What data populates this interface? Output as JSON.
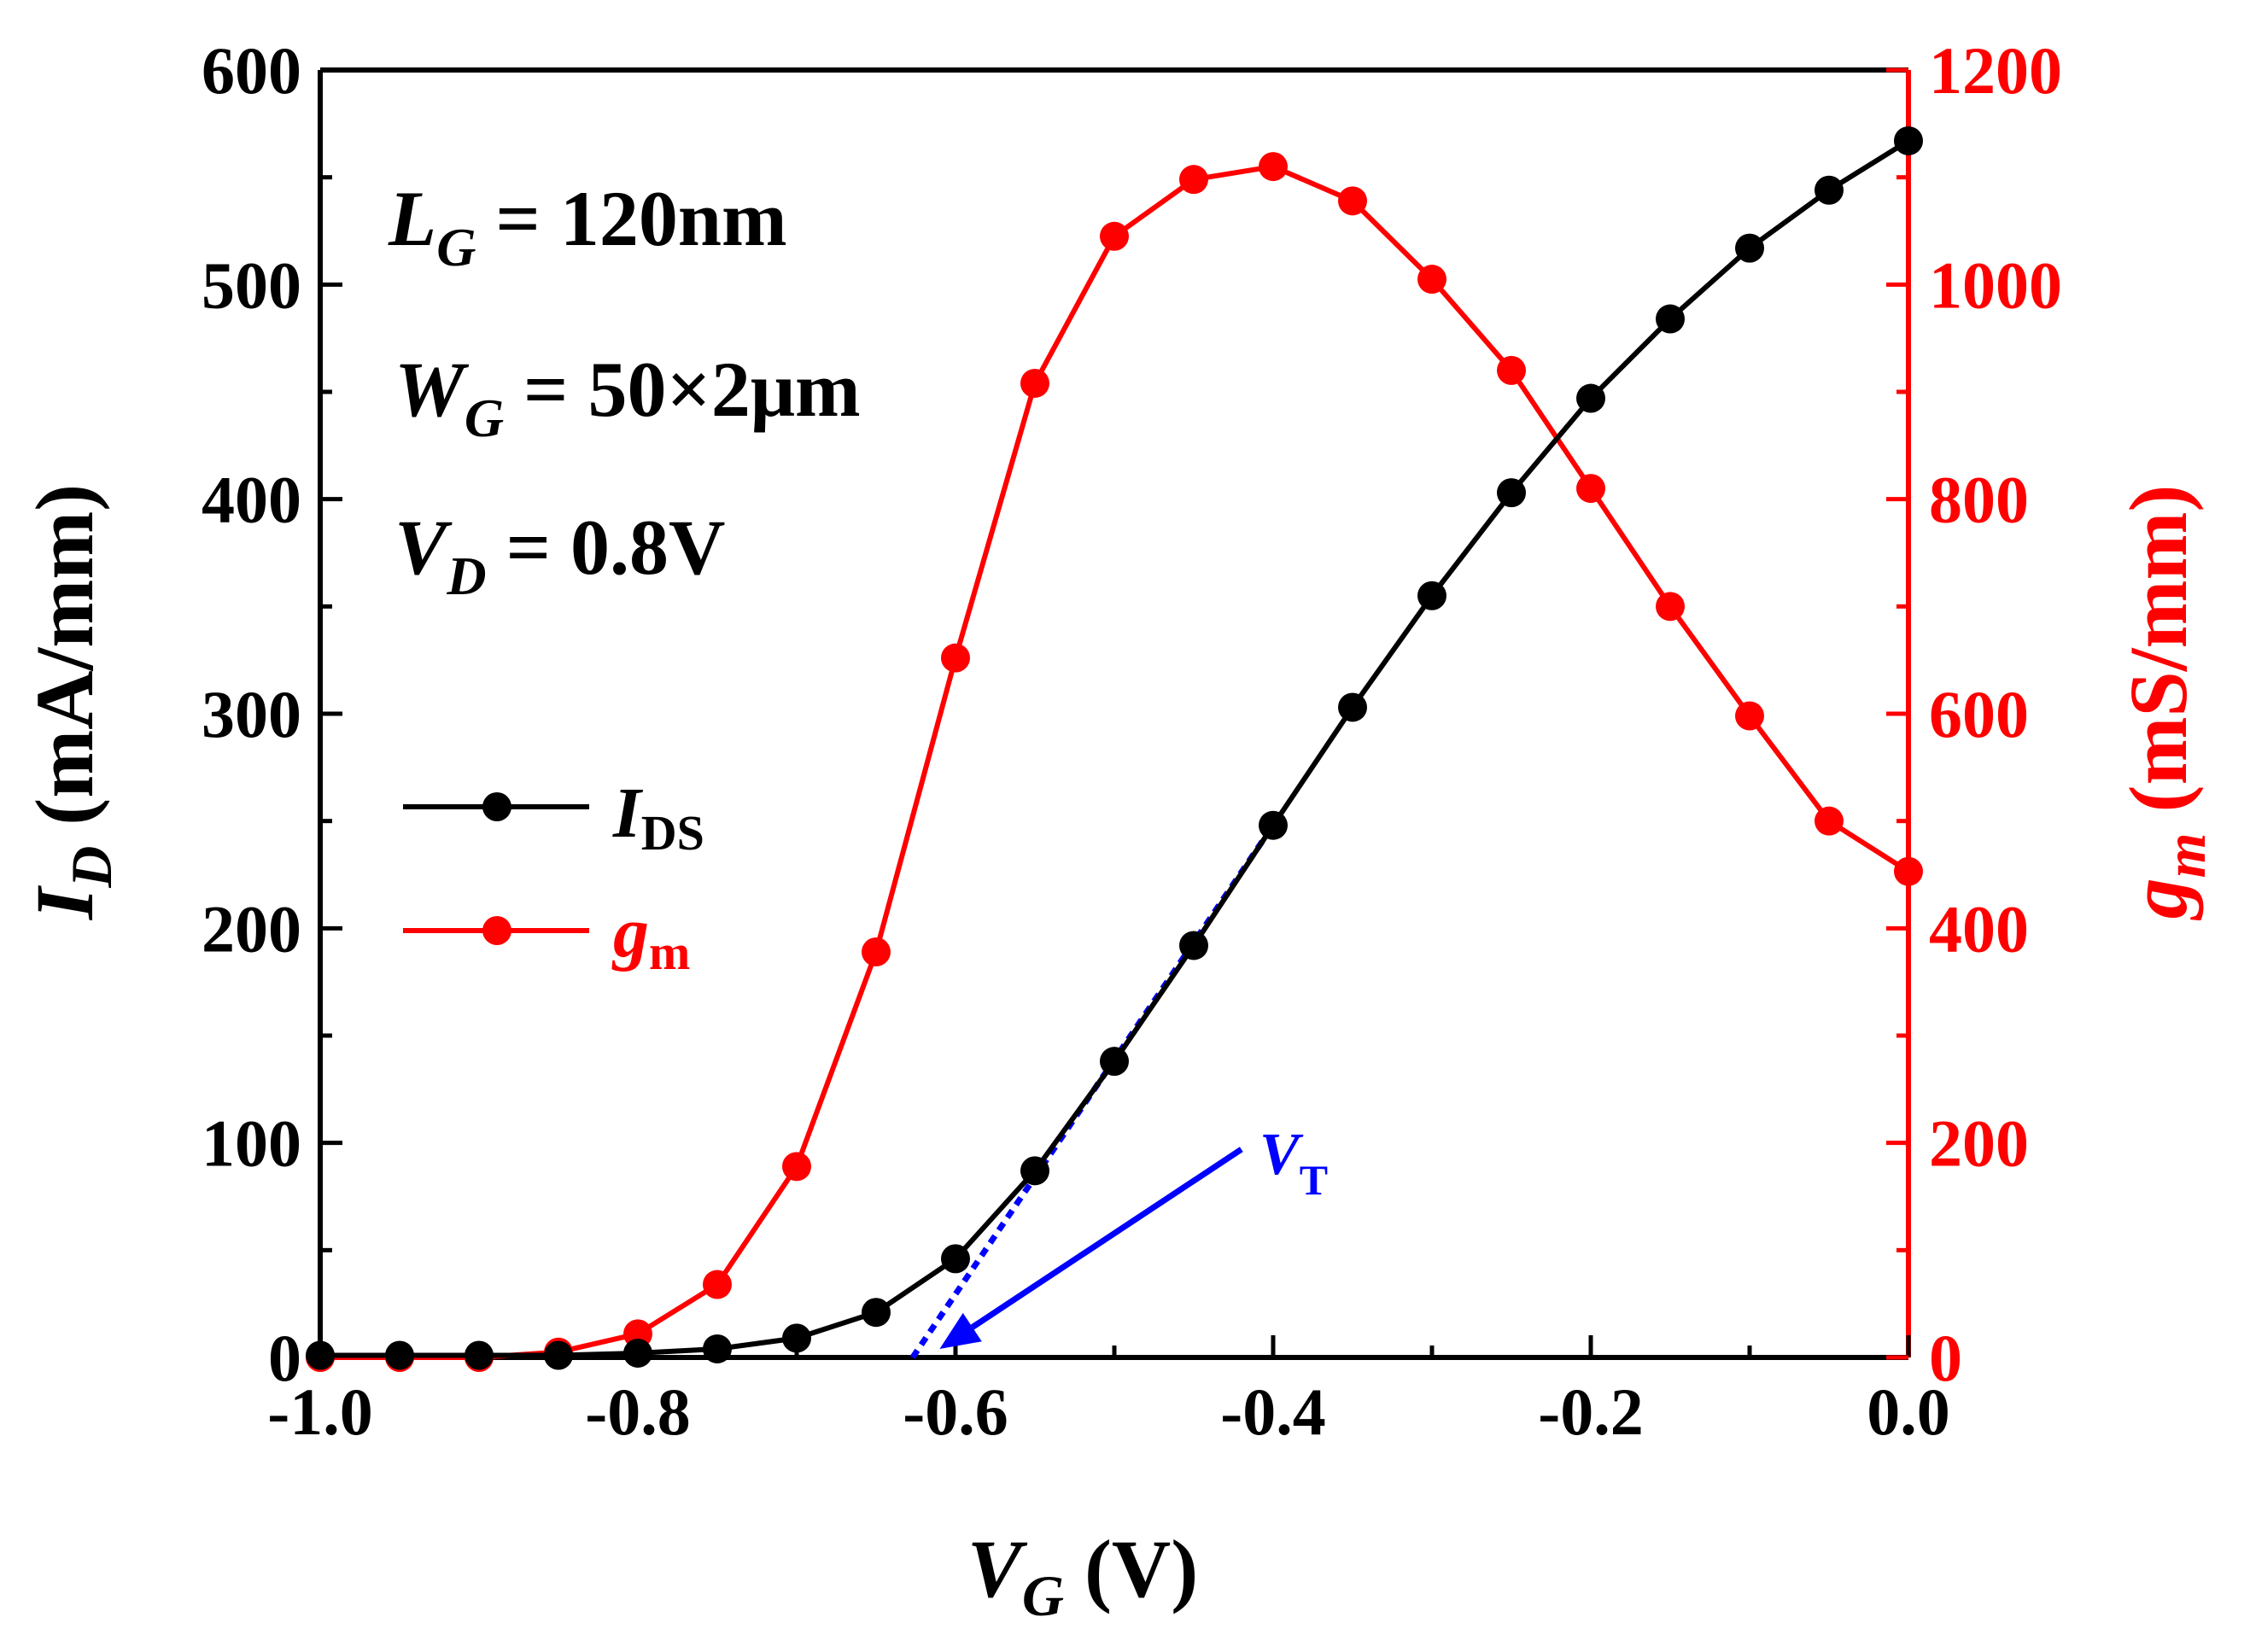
{
  "chart_data": {
    "type": "line",
    "x_axis": {
      "label_var": "V",
      "label_sub": "G",
      "label_unit": " (V)",
      "range": [
        -1.0,
        0.0
      ],
      "ticks": [
        -1.0,
        -0.8,
        -0.6,
        -0.4,
        -0.2,
        0.0
      ],
      "tick_labels": [
        "-1.0",
        "-0.8",
        "-0.6",
        "-0.4",
        "-0.2",
        "0.0"
      ]
    },
    "y_left": {
      "label_var": "I",
      "label_sub": "D",
      "label_unit": " (mA/mm)",
      "range": [
        0,
        600
      ],
      "ticks": [
        0,
        100,
        200,
        300,
        400,
        500,
        600
      ],
      "tick_labels": [
        "0",
        "100",
        "200",
        "300",
        "400",
        "500",
        "600"
      ],
      "color": "#000000"
    },
    "y_right": {
      "label_var": "g",
      "label_sub": "m",
      "label_unit": " (mS/mm)",
      "range": [
        0,
        1200
      ],
      "ticks": [
        0,
        200,
        400,
        600,
        800,
        1000,
        1200
      ],
      "tick_labels": [
        "0",
        "200",
        "400",
        "600",
        "800",
        "1000",
        "1200"
      ],
      "color": "#ff0000"
    },
    "x": [
      -1.0,
      -0.95,
      -0.9,
      -0.85,
      -0.8,
      -0.75,
      -0.7,
      -0.65,
      -0.6,
      -0.55,
      -0.5,
      -0.45,
      -0.4,
      -0.35,
      -0.3,
      -0.25,
      -0.2,
      -0.15,
      -0.1,
      -0.05,
      0.0
    ],
    "series": [
      {
        "name_var": "I",
        "name_sub": "DS",
        "axis": "left",
        "color": "#000000",
        "values": [
          1,
          1,
          1,
          1,
          2,
          4,
          9,
          21,
          46,
          87,
          138,
          192,
          248,
          303,
          355,
          403,
          447,
          484,
          517,
          544,
          567
        ]
      },
      {
        "name_var": "g",
        "name_sub": "m",
        "axis": "right",
        "color": "#ff0000",
        "values": [
          0,
          0,
          0,
          5,
          22,
          68,
          178,
          378,
          652,
          908,
          1045,
          1098,
          1110,
          1078,
          1005,
          920,
          810,
          700,
          598,
          500,
          453
        ]
      }
    ],
    "annotations": {
      "lg_var": "L",
      "lg_sub": "G",
      "lg_val": " = 120nm",
      "wg_var": "W",
      "wg_sub": "G",
      "wg_val": " = 50×2μm",
      "vd_var": "V",
      "vd_sub": "D",
      "vd_val": " = 0.8V",
      "vt_var": "V",
      "vt_sub": "T",
      "vt_color": "#0000ff",
      "vt_extrapolation": {
        "x1": -0.627,
        "y1": 0,
        "x2": -0.4,
        "y2": 248
      },
      "vt_arrow": {
        "from_x": -0.42,
        "from_y": 97,
        "to_x": -0.61,
        "to_y": 4
      }
    },
    "legend_position": "center-left",
    "grid": false
  }
}
